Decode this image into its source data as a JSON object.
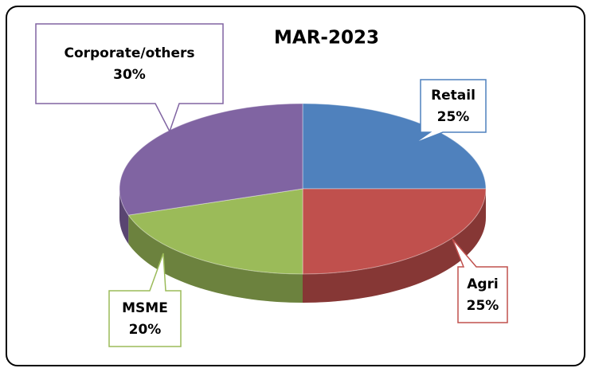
{
  "chart_data": {
    "type": "pie",
    "title": "MAR-2023",
    "categories": [
      "Retail",
      "Agri",
      "MSME",
      "Corporate/others"
    ],
    "values": [
      25,
      25,
      20,
      30
    ],
    "value_labels": [
      "25%",
      "25%",
      "20%",
      "30%"
    ],
    "colors": [
      "#4f81bd",
      "#c0504d",
      "#9bbb59",
      "#8064a2"
    ]
  }
}
